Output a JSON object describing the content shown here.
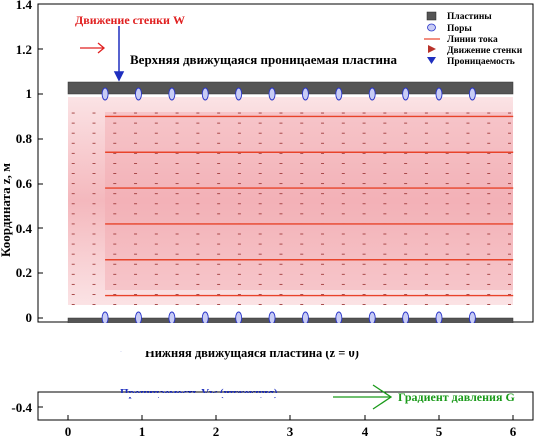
{
  "axes": {
    "ylabel": "Координата z, м",
    "y_ticks": [
      "1.4",
      "1.2",
      "1",
      "0.8",
      "0.6",
      "0.4",
      "0.2",
      "0",
      "-0.4"
    ],
    "x_ticks": [
      "0",
      "1",
      "2",
      "3",
      "4",
      "5",
      "6"
    ]
  },
  "labels": {
    "wall_motion": "Движение стенки W",
    "top_plate": "Верхняя движущаяся проницаемая пластина",
    "bottom_plate": "Нижняя движущаяся пластина (z = 0)",
    "permeability": "Проницаемость Vw (инжекция)",
    "pressure_gradient": "Градиент давления G"
  },
  "legend": {
    "plates": "Пластины",
    "pores": "Поры",
    "streamlines": "Линии тока",
    "wall_motion": "Движение стенки",
    "permeability": "Проницаемость"
  },
  "colors": {
    "plate": "#555555",
    "pore_fill": "#c8ccf5",
    "pore_stroke": "#2a35c8",
    "streamline": "#e8432a",
    "wall_arrow": "#e02020",
    "injection": "#1f2fbf",
    "gradient": "#1a9a1a",
    "fluid": "#f4b3b8"
  },
  "chart_data": {
    "type": "diagram",
    "xlim": [
      0,
      6
    ],
    "ylim": [
      -0.4,
      1.4
    ],
    "plates_z": [
      0,
      1
    ],
    "streamlines_z": [
      0.1,
      0.26,
      0.42,
      0.58,
      0.74,
      0.9
    ],
    "streamline_x_range": [
      0.5,
      6
    ],
    "pores_x": [
      0.5,
      0.95,
      1.4,
      1.85,
      2.3,
      2.75,
      3.2,
      3.65,
      4.1,
      4.55,
      5.0,
      5.45
    ]
  }
}
